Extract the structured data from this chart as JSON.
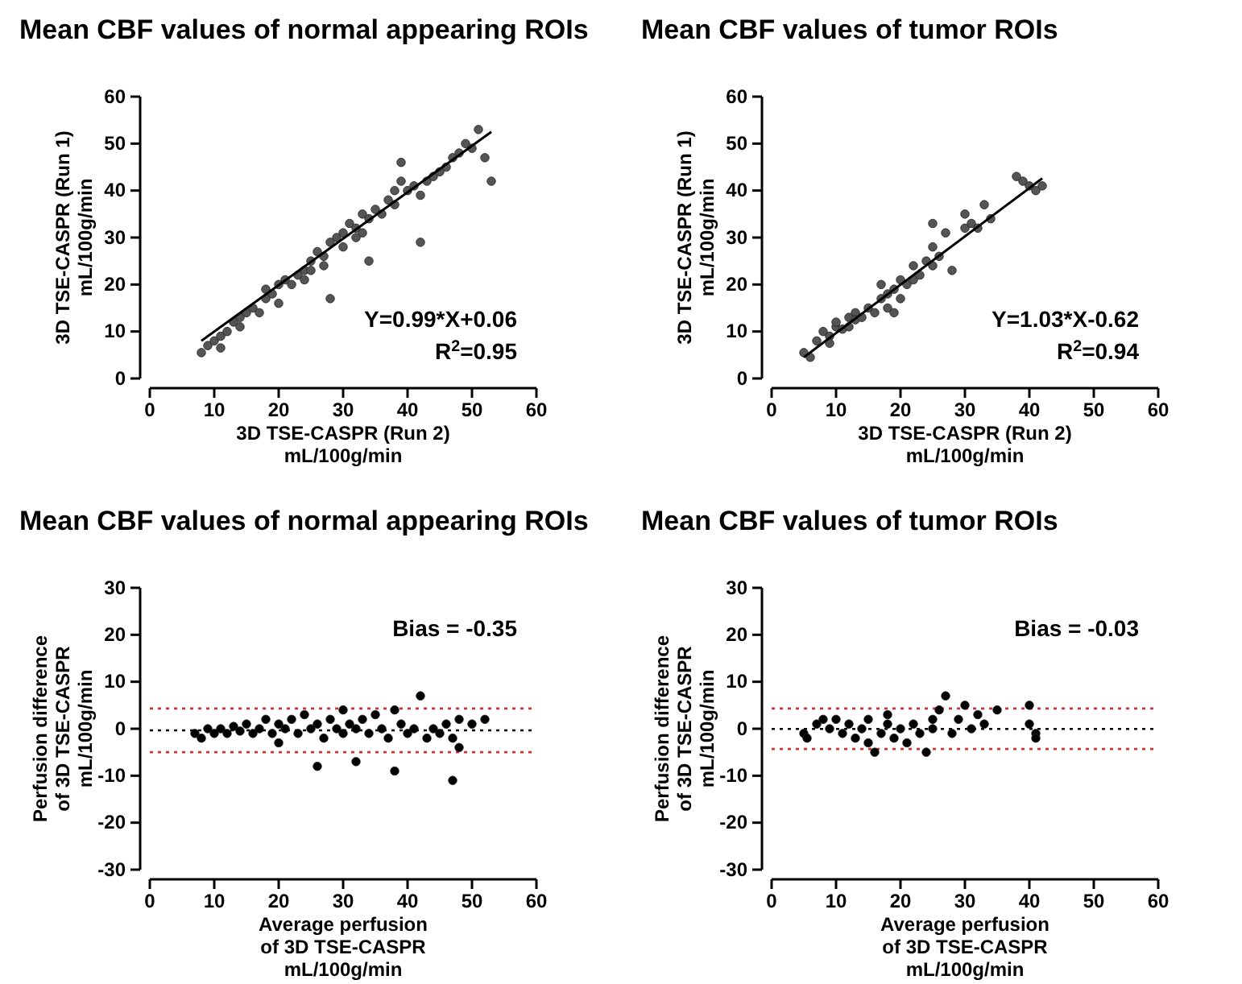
{
  "chart_data": [
    {
      "type": "scatter",
      "title": "Mean CBF values of normal appearing ROIs",
      "xlabel": "3D TSE-CASPR (Run 2)\nmL/100g/min",
      "ylabel": "3D TSE-CASPR (Run 1)\nmL/100g/min",
      "xlim": [
        0,
        60
      ],
      "ylim": [
        0,
        60
      ],
      "xticks": [
        0,
        10,
        20,
        30,
        40,
        50,
        60
      ],
      "yticks": [
        0,
        10,
        20,
        30,
        40,
        50,
        60
      ],
      "grid": false,
      "marker": "circle",
      "annotations": [
        "Y=0.99*X+0.06",
        "R$^{2}$=0.95"
      ],
      "series": [
        {
          "color": "#555555",
          "x": [
            8,
            9,
            10,
            11,
            11,
            12,
            13,
            14,
            14,
            15,
            16,
            17,
            18,
            18,
            19,
            20,
            20,
            21,
            22,
            23,
            24,
            24,
            25,
            25,
            26,
            27,
            27,
            28,
            28,
            29,
            30,
            30,
            31,
            32,
            32,
            33,
            33,
            34,
            34,
            35,
            36,
            37,
            38,
            38,
            39,
            39,
            40,
            41,
            42,
            42,
            43,
            44,
            45,
            46,
            47,
            48,
            49,
            50,
            51,
            52,
            53
          ],
          "values": [
            5.5,
            7,
            8,
            6.5,
            9,
            10,
            12,
            11,
            13,
            14,
            15,
            14,
            17,
            19,
            18,
            20,
            16,
            21,
            20,
            22,
            23,
            21,
            25,
            23,
            27,
            26,
            24,
            29,
            17,
            30,
            28,
            31,
            33,
            30,
            32,
            35,
            31,
            34,
            25,
            36,
            35,
            38,
            40,
            37,
            46,
            42,
            40,
            41,
            39,
            29,
            42,
            43,
            44,
            45,
            47,
            48,
            50,
            49,
            53,
            47,
            42
          ]
        },
        {
          "type": "line",
          "color": "#000000",
          "line_style": "solid",
          "marker": "none",
          "x": [
            8,
            53
          ],
          "values": [
            8,
            52.5
          ]
        }
      ]
    },
    {
      "type": "scatter",
      "title": "Mean CBF values of tumor ROIs",
      "xlabel": "3D TSE-CASPR (Run 2)\nmL/100g/min",
      "ylabel": "3D TSE-CASPR (Run 1)\nmL/100g/min",
      "xlim": [
        0,
        60
      ],
      "ylim": [
        0,
        60
      ],
      "xticks": [
        0,
        10,
        20,
        30,
        40,
        50,
        60
      ],
      "yticks": [
        0,
        10,
        20,
        30,
        40,
        50,
        60
      ],
      "grid": false,
      "marker": "circle",
      "annotations": [
        "Y=1.03*X-0.62",
        "R$^{2}$=0.94"
      ],
      "series": [
        {
          "color": "#555555",
          "x": [
            5,
            6,
            7,
            8,
            9,
            9,
            10,
            10,
            11,
            12,
            12,
            13,
            13,
            14,
            15,
            16,
            17,
            17,
            18,
            18,
            19,
            19,
            20,
            20,
            21,
            22,
            22,
            23,
            24,
            25,
            25,
            25,
            26,
            27,
            28,
            30,
            30,
            31,
            32,
            33,
            34,
            38,
            39,
            40,
            41,
            42
          ],
          "values": [
            5.5,
            4.5,
            8,
            10,
            9,
            7.5,
            11,
            12,
            10.5,
            13,
            11,
            14,
            12.5,
            13,
            15,
            14,
            17,
            20,
            15,
            18,
            14,
            19,
            21,
            17,
            20,
            24,
            21,
            22,
            25,
            24,
            28,
            33,
            26,
            31,
            23,
            35,
            32,
            33,
            32,
            37,
            34,
            43,
            42,
            41,
            40,
            41
          ]
        },
        {
          "type": "line",
          "color": "#000000",
          "line_style": "solid",
          "marker": "none",
          "x": [
            5,
            42
          ],
          "values": [
            4.5,
            42.6
          ]
        }
      ]
    },
    {
      "type": "scatter",
      "title": "Mean CBF values of normal appearing ROIs",
      "xlabel": "Average perfusion\nof 3D TSE-CASPR\nmL/100g/min",
      "ylabel": "Perfusion difference\nof 3D TSE-CASPR\nmL/100g/min",
      "xlim": [
        0,
        60
      ],
      "ylim": [
        -30,
        30
      ],
      "xticks": [
        0,
        10,
        20,
        30,
        40,
        50,
        60
      ],
      "yticks": [
        -30,
        -20,
        -10,
        0,
        10,
        20,
        30
      ],
      "grid": false,
      "marker": "circle",
      "annotations": [
        "Bias = -0.35"
      ],
      "ref_lines": [
        {
          "axis": "y",
          "value": -0.35,
          "color": "#000000",
          "line_style": "dotted"
        },
        {
          "axis": "y",
          "value": 4.3,
          "color": "#cc3333",
          "line_style": "dotted"
        },
        {
          "axis": "y",
          "value": -5.0,
          "color": "#cc3333",
          "line_style": "dotted"
        }
      ],
      "series": [
        {
          "color": "#000000",
          "x": [
            7,
            8,
            9,
            10,
            11,
            12,
            13,
            14,
            15,
            16,
            17,
            18,
            19,
            20,
            20,
            21,
            22,
            23,
            24,
            25,
            26,
            26,
            27,
            28,
            29,
            30,
            30,
            31,
            32,
            32,
            33,
            34,
            35,
            36,
            37,
            38,
            38,
            39,
            40,
            41,
            42,
            43,
            44,
            45,
            46,
            47,
            47,
            48,
            48,
            50,
            52
          ],
          "values": [
            -1,
            -2,
            0,
            -1,
            0,
            -1,
            0.5,
            -0.5,
            1,
            -1,
            0,
            2,
            -1,
            -3,
            1,
            0,
            2,
            -1,
            3,
            0,
            -8,
            1,
            -2,
            2,
            0,
            -1,
            4,
            1,
            -7,
            0,
            2,
            -1,
            3,
            0,
            -2,
            4,
            -9,
            1,
            -1,
            0,
            7,
            -2,
            0,
            -1,
            1,
            -2,
            -11,
            -4,
            2,
            1,
            2
          ]
        }
      ]
    },
    {
      "type": "scatter",
      "title": "Mean CBF values of tumor ROIs",
      "xlabel": "Average perfusion\nof 3D TSE-CASPR\nmL/100g/min",
      "ylabel": "Perfusion difference\nof 3D TSE-CASPR\nmL/100g/min",
      "xlim": [
        0,
        60
      ],
      "ylim": [
        -30,
        30
      ],
      "xticks": [
        0,
        10,
        20,
        30,
        40,
        50,
        60
      ],
      "yticks": [
        -30,
        -20,
        -10,
        0,
        10,
        20,
        30
      ],
      "grid": false,
      "marker": "circle",
      "annotations": [
        "Bias = -0.03"
      ],
      "ref_lines": [
        {
          "axis": "y",
          "value": -0.03,
          "color": "#000000",
          "line_style": "dotted"
        },
        {
          "axis": "y",
          "value": 4.3,
          "color": "#cc3333",
          "line_style": "dotted"
        },
        {
          "axis": "y",
          "value": -4.3,
          "color": "#cc3333",
          "line_style": "dotted"
        }
      ],
      "series": [
        {
          "color": "#000000",
          "x": [
            5,
            5.5,
            7,
            8,
            9,
            10,
            11,
            12,
            13,
            14,
            15,
            15,
            16,
            17,
            18,
            18,
            19,
            20,
            21,
            22,
            23,
            24,
            25,
            25,
            26,
            27,
            28,
            29,
            30,
            31,
            32,
            33,
            35,
            40,
            40,
            41,
            41
          ],
          "values": [
            -1,
            -2,
            1,
            2,
            0,
            2,
            -1,
            1,
            -2,
            0,
            2,
            -3,
            -5,
            -1,
            1,
            3,
            -2,
            0,
            -3,
            1,
            -1,
            -5,
            0,
            2,
            4,
            7,
            -1,
            2,
            5,
            0,
            3,
            1,
            4,
            5,
            1,
            -1,
            -2
          ]
        }
      ]
    }
  ]
}
